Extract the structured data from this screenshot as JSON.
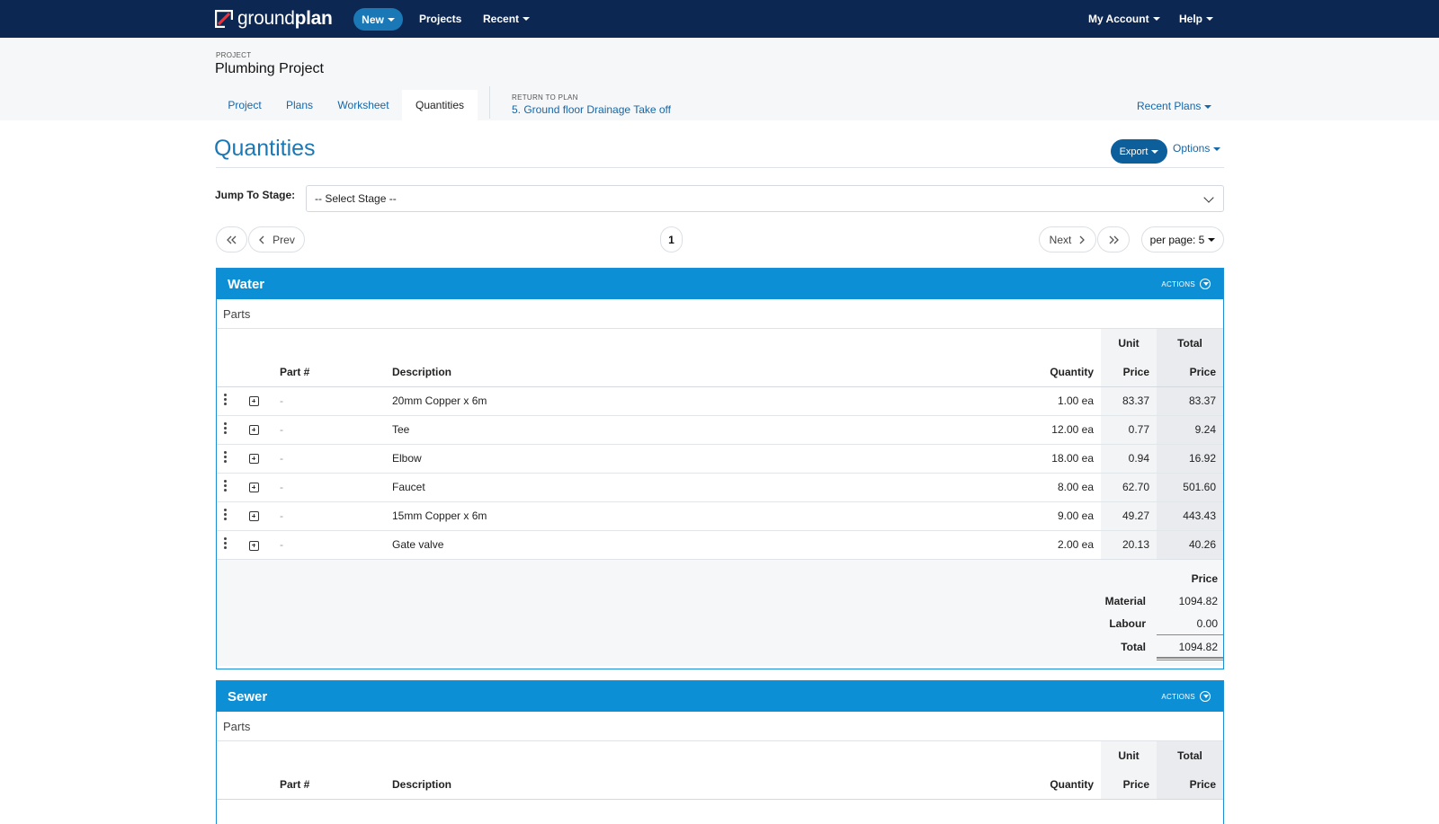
{
  "nav": {
    "logo_light": "ground",
    "logo_bold": "plan",
    "new_label": "New",
    "projects_label": "Projects",
    "recent_label": "Recent",
    "account_label": "My Account",
    "help_label": "Help"
  },
  "project": {
    "kicker": "PROJECT",
    "title": "Plumbing Project",
    "tabs": [
      {
        "label": "Project"
      },
      {
        "label": "Plans"
      },
      {
        "label": "Worksheet"
      },
      {
        "label": "Quantities"
      }
    ],
    "return_kicker": "RETURN TO PLAN",
    "return_link": "5. Ground floor Drainage Take off",
    "recent_plans": "Recent Plans"
  },
  "page": {
    "title": "Quantities",
    "export_label": "Export",
    "options_label": "Options",
    "stage_label": "Jump To Stage:",
    "stage_value": "-- Select Stage --"
  },
  "pagination": {
    "prev_label": "Prev",
    "next_label": "Next",
    "current_page": "1",
    "per_page_label": "per page: 5"
  },
  "table_headers": {
    "part": "Part #",
    "description": "Description",
    "quantity": "Quantity",
    "unit_top": "Unit",
    "unit_bottom": "Price",
    "total_top": "Total",
    "total_bottom": "Price"
  },
  "water": {
    "title": "Water",
    "actions_label": "ACTIONS",
    "parts_label": "Parts",
    "rows": [
      {
        "part": "-",
        "description": "20mm Copper x 6m",
        "quantity": "1.00 ea",
        "unit": "83.37",
        "total": "83.37"
      },
      {
        "part": "-",
        "description": "Tee",
        "quantity": "12.00 ea",
        "unit": "0.77",
        "total": "9.24"
      },
      {
        "part": "-",
        "description": "Elbow",
        "quantity": "18.00 ea",
        "unit": "0.94",
        "total": "16.92"
      },
      {
        "part": "-",
        "description": "Faucet",
        "quantity": "8.00 ea",
        "unit": "62.70",
        "total": "501.60"
      },
      {
        "part": "-",
        "description": "15mm Copper x 6m",
        "quantity": "9.00 ea",
        "unit": "49.27",
        "total": "443.43"
      },
      {
        "part": "-",
        "description": "Gate valve",
        "quantity": "2.00 ea",
        "unit": "20.13",
        "total": "40.26"
      }
    ],
    "summary": {
      "header": "Price",
      "material_label": "Material",
      "material_value": "1094.82",
      "labour_label": "Labour",
      "labour_value": "0.00",
      "total_label": "Total",
      "total_value": "1094.82"
    }
  },
  "sewer": {
    "title": "Sewer",
    "actions_label": "ACTIONS",
    "parts_label": "Parts"
  },
  "colors": {
    "nav_bg": "#0c2752",
    "panel_head": "#0d8fd6",
    "link": "#1766a6",
    "export_btn": "#0c5f9b"
  }
}
